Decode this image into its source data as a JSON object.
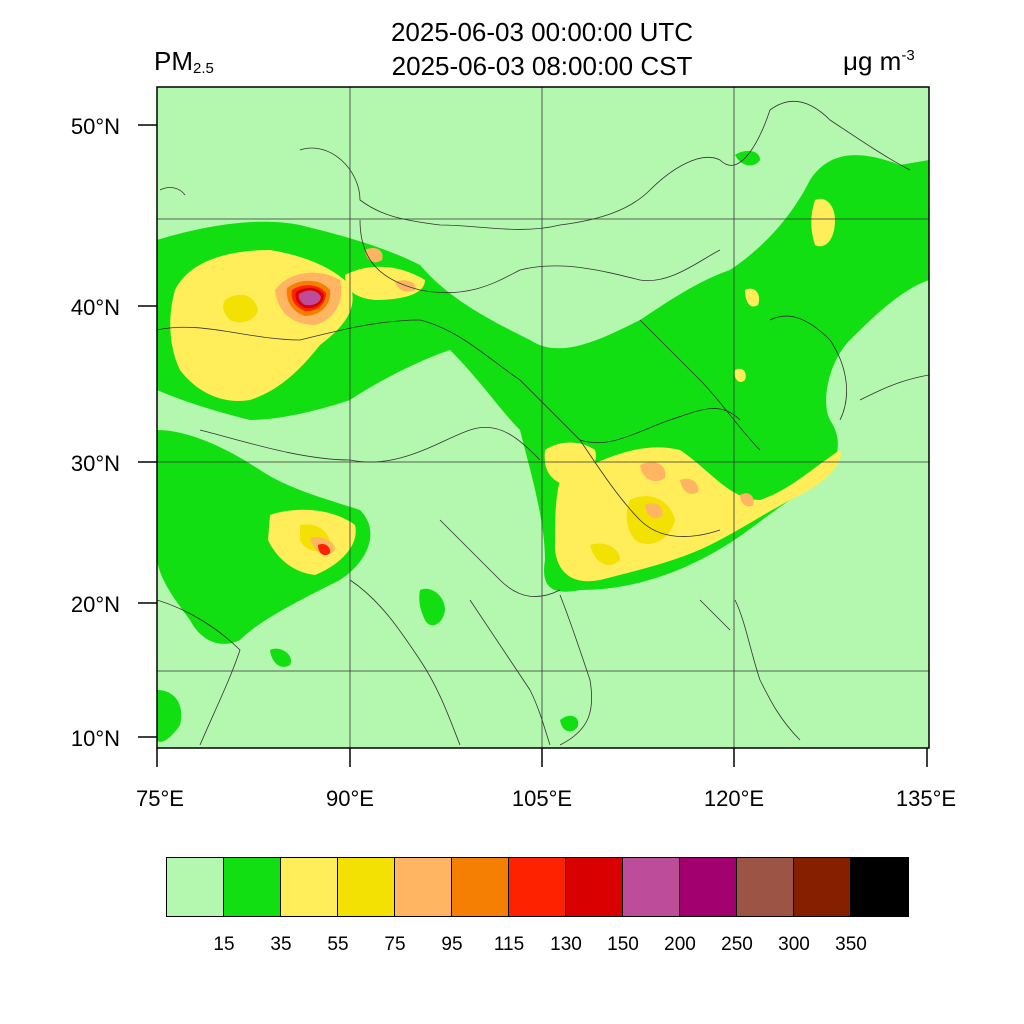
{
  "header": {
    "variable_main": "PM",
    "variable_sub": "2.5",
    "time_utc": "2025-06-03 00:00:00 UTC",
    "time_cst": "2025-06-03 08:00:00 CST",
    "units_main": "μg m",
    "units_exp": "-3"
  },
  "axes": {
    "lat_labels": [
      "50°N",
      "40°N",
      "30°N",
      "20°N",
      "10°N"
    ],
    "lon_labels": [
      "75°E",
      "90°E",
      "105°E",
      "120°E",
      "135°E"
    ]
  },
  "colorbar": {
    "colors": [
      "#b4f7ae",
      "#12df12",
      "#ffed5a",
      "#f2e102",
      "#ffb562",
      "#f57f02",
      "#ff2200",
      "#d80000",
      "#bd4c9a",
      "#a2006e",
      "#9c5444",
      "#851f00",
      "#000000"
    ],
    "labels": [
      "15",
      "35",
      "55",
      "75",
      "95",
      "115",
      "130",
      "150",
      "200",
      "250",
      "300",
      "350"
    ]
  }
}
